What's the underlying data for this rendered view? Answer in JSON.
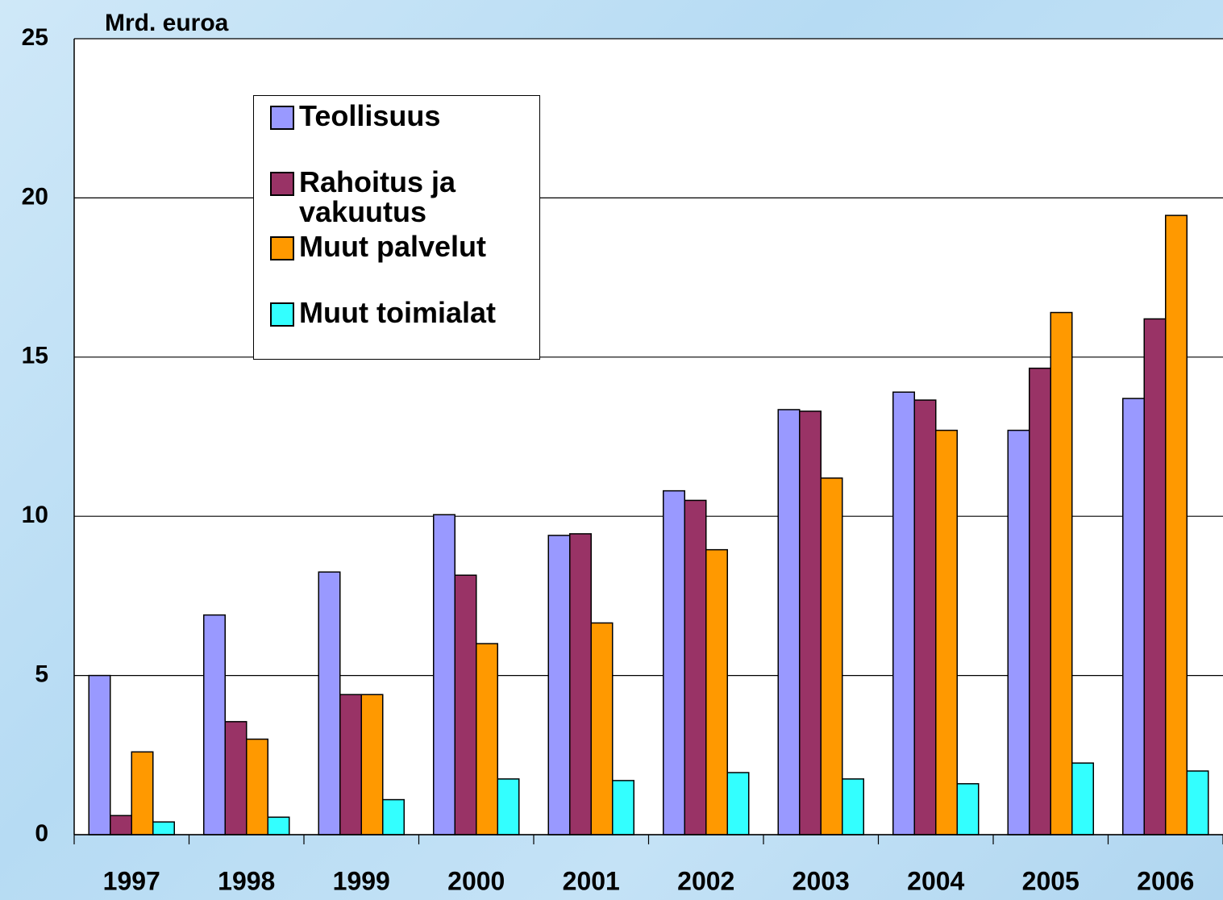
{
  "chart_data": {
    "type": "bar",
    "ylabel": "Mrd. euroa",
    "categories": [
      "1997",
      "1998",
      "1999",
      "2000",
      "2001",
      "2002",
      "2003",
      "2004",
      "2005",
      "2006"
    ],
    "series": [
      {
        "name": "Teollisuus",
        "color": "#9999ff",
        "values": [
          5.0,
          6.9,
          8.25,
          10.05,
          9.4,
          10.8,
          13.35,
          13.9,
          12.7,
          13.7
        ]
      },
      {
        "name": "Rahoitus ja vakuutus",
        "color": "#993366",
        "values": [
          0.6,
          3.55,
          4.4,
          8.15,
          9.45,
          10.5,
          13.3,
          13.65,
          14.65,
          16.2
        ]
      },
      {
        "name": "Muut palvelut",
        "color": "#ff9900",
        "values": [
          2.6,
          3.0,
          4.4,
          6.0,
          6.65,
          8.95,
          11.2,
          12.7,
          16.4,
          19.45
        ]
      },
      {
        "name": "Muut toimialat",
        "color": "#33ffff",
        "values": [
          0.4,
          0.55,
          1.1,
          1.75,
          1.7,
          1.95,
          1.75,
          1.6,
          2.25,
          2.0
        ]
      }
    ],
    "ylim": [
      0,
      25
    ],
    "yticks": [
      0,
      5,
      10,
      15,
      20,
      25
    ],
    "grid": true
  }
}
